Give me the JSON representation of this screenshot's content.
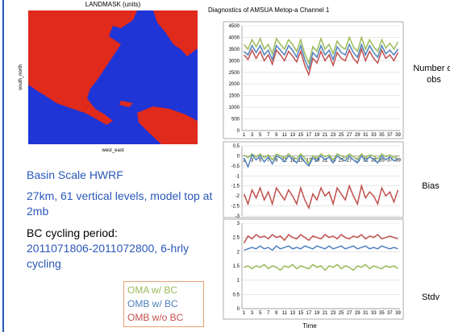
{
  "slide": {
    "map_title": "LANDMASK (units)",
    "map_xlabel": "west_east",
    "map_ylabel": "south_north",
    "text1": "Basin Scale HWRF",
    "text2": "27km, 61 vertical levels, model top at 2mb",
    "text3": "BC cycling period:",
    "text4": "2011071806-2011072800, 6-hrly cycling",
    "xlabel": "Time"
  },
  "chart_data": [
    {
      "type": "line",
      "title": "Diagnostics of AMSUA Metop-a Channel 1",
      "side_label": "Number of obs",
      "grid": true,
      "categories": [
        "1",
        null,
        "3",
        null,
        "5",
        null,
        "7",
        null,
        "9",
        null,
        "11",
        null,
        "13",
        null,
        "15",
        null,
        "17",
        null,
        "19",
        null,
        "21",
        null,
        "23",
        null,
        "25",
        null,
        "27",
        null,
        "29",
        null,
        "31",
        null,
        "33",
        null,
        "35",
        null,
        "37",
        null,
        "39"
      ],
      "ylim": [
        0,
        4500
      ],
      "yticks": [
        0,
        500,
        1000,
        1500,
        2000,
        2500,
        3000,
        3500,
        4000,
        4500
      ],
      "x_axis_at": 0,
      "series": [
        {
          "name": "OMA w/ BC",
          "color": "#9bbb59",
          "values": [
            3700,
            3500,
            3900,
            3600,
            3950,
            3500,
            3700,
            3300,
            3950,
            3700,
            3500,
            3900,
            3700,
            3400,
            3900,
            3300,
            2900,
            3600,
            3400,
            3950,
            3500,
            3700,
            3300,
            3850,
            3600,
            3500,
            4000,
            3600,
            3400,
            4000,
            3500,
            3900,
            3600,
            3400,
            3900,
            3550,
            3750,
            3500,
            3800
          ]
        },
        {
          "name": "OMB w/ BC",
          "color": "#4f81bd",
          "values": [
            3400,
            3250,
            3650,
            3350,
            3650,
            3250,
            3450,
            3050,
            3650,
            3450,
            3250,
            3650,
            3450,
            3150,
            3650,
            3050,
            2650,
            3350,
            3150,
            3650,
            3250,
            3450,
            3050,
            3600,
            3350,
            3250,
            3700,
            3350,
            3150,
            3700,
            3250,
            3650,
            3350,
            3150,
            3650,
            3300,
            3450,
            3250,
            3500
          ]
        },
        {
          "name": "OMB w/o BC",
          "color": "#c0504d",
          "values": [
            3250,
            3050,
            3450,
            3100,
            3400,
            3000,
            3250,
            2850,
            3450,
            3250,
            3000,
            3400,
            3200,
            2950,
            3400,
            2800,
            2400,
            3100,
            2900,
            3400,
            3000,
            3250,
            2800,
            3350,
            3100,
            3000,
            3450,
            3100,
            2900,
            3500,
            3000,
            3400,
            3100,
            2900,
            3450,
            3100,
            3250,
            3000,
            3350
          ]
        }
      ]
    },
    {
      "type": "line",
      "side_label": "Bias",
      "grid": true,
      "categories": [
        "1",
        null,
        "3",
        null,
        "5",
        null,
        "7",
        null,
        "9",
        null,
        "11",
        null,
        "13",
        null,
        "15",
        null,
        "17",
        null,
        "19",
        null,
        "21",
        null,
        "23",
        null,
        "25",
        null,
        "27",
        null,
        "29",
        null,
        "31",
        null,
        "33",
        null,
        "35",
        null,
        "37",
        null,
        "39"
      ],
      "ylim": [
        -3,
        0.5
      ],
      "yticks": [
        -3,
        -2.5,
        -2,
        -1.5,
        -1,
        -0.5,
        0,
        0.5
      ],
      "x_axis_at": 0,
      "series": [
        {
          "color": "#9bbb59",
          "values": [
            0.05,
            -0.1,
            0.1,
            -0.05,
            0.1,
            -0.1,
            0.05,
            -0.2,
            0.1,
            0,
            -0.1,
            0.1,
            -0.05,
            -0.15,
            0.1,
            -0.1,
            -0.4,
            0,
            -0.1,
            0.1,
            -0.05,
            0.05,
            -0.2,
            0.1,
            0,
            -0.1,
            0.1,
            -0.05,
            -0.15,
            0.1,
            -0.1,
            0.05,
            0,
            -0.15,
            0.1,
            -0.05,
            0.05,
            -0.1,
            0
          ]
        },
        {
          "color": "#4f81bd",
          "values": [
            -0.1,
            -0.55,
            0.05,
            -0.2,
            0,
            -0.3,
            -0.05,
            -0.4,
            0,
            -0.1,
            -0.3,
            0,
            -0.15,
            -0.35,
            0,
            -0.3,
            -0.5,
            -0.1,
            -0.25,
            0,
            -0.2,
            -0.05,
            -0.35,
            0,
            -0.15,
            -0.25,
            0,
            -0.2,
            -0.35,
            0,
            -0.25,
            -0.05,
            -0.15,
            -0.35,
            0,
            -0.2,
            -0.05,
            -0.25,
            -0.15
          ]
        },
        {
          "color": "#c0504d",
          "values": [
            -1.9,
            -2.4,
            -1.7,
            -2.1,
            -1.6,
            -2.2,
            -1.8,
            -2.4,
            -1.6,
            -1.9,
            -2.2,
            -1.7,
            -2,
            -2.4,
            -1.6,
            -2.2,
            -2.6,
            -1.9,
            -2.2,
            -1.6,
            -2,
            -1.8,
            -2.4,
            -1.6,
            -1.9,
            -2.2,
            -1.5,
            -2,
            -2.4,
            -1.5,
            -2.1,
            -1.8,
            -2,
            -2.4,
            -1.6,
            -2,
            -1.8,
            -2.3,
            -1.7
          ]
        }
      ]
    },
    {
      "type": "line",
      "side_label": "Stdv",
      "grid": true,
      "categories": [
        "1",
        null,
        "3",
        null,
        "5",
        null,
        "7",
        null,
        "9",
        null,
        "11",
        null,
        "13",
        null,
        "15",
        null,
        "17",
        null,
        "19",
        null,
        "21",
        null,
        "23",
        null,
        "25",
        null,
        "27",
        null,
        "29",
        null,
        "31",
        null,
        "33",
        null,
        "35",
        null,
        "37",
        null,
        "39"
      ],
      "ylim": [
        0,
        3
      ],
      "yticks": [
        0,
        0.5,
        1,
        1.5,
        2,
        2.5,
        3
      ],
      "x_axis_at": 0,
      "series": [
        {
          "color": "#9bbb59",
          "values": [
            1.45,
            1.5,
            1.4,
            1.5,
            1.45,
            1.55,
            1.4,
            1.5,
            1.45,
            1.35,
            1.5,
            1.45,
            1.55,
            1.4,
            1.5,
            1.45,
            1.4,
            1.55,
            1.45,
            1.5,
            1.35,
            1.5,
            1.45,
            1.55,
            1.4,
            1.5,
            1.45,
            1.35,
            1.5,
            1.45,
            1.55,
            1.4,
            1.5,
            1.45,
            1.4,
            1.5,
            1.45,
            1.5,
            1.4
          ]
        },
        {
          "color": "#4f81bd",
          "values": [
            2.05,
            2.1,
            2.15,
            2.1,
            2.2,
            2.1,
            2.15,
            2.05,
            2.2,
            2.1,
            2.15,
            2.2,
            2.1,
            2.15,
            2.1,
            2.2,
            2.15,
            2.1,
            2.2,
            2.15,
            2.1,
            2.2,
            2.1,
            2.15,
            2.2,
            2.1,
            2.15,
            2.2,
            2.1,
            2.15,
            2.2,
            2.1,
            2.15,
            2.1,
            2.2,
            2.15,
            2.1,
            2.15,
            2.1
          ]
        },
        {
          "color": "#c0504d",
          "values": [
            2.3,
            2.55,
            2.45,
            2.6,
            2.5,
            2.55,
            2.45,
            2.6,
            2.5,
            2.55,
            2.4,
            2.6,
            2.5,
            2.45,
            2.6,
            2.5,
            2.4,
            2.55,
            2.5,
            2.45,
            2.6,
            2.5,
            2.55,
            2.45,
            2.6,
            2.5,
            2.45,
            2.55,
            2.5,
            2.6,
            2.45,
            2.55,
            2.5,
            2.6,
            2.45,
            2.5,
            2.55,
            2.5,
            2.45
          ]
        }
      ]
    }
  ]
}
